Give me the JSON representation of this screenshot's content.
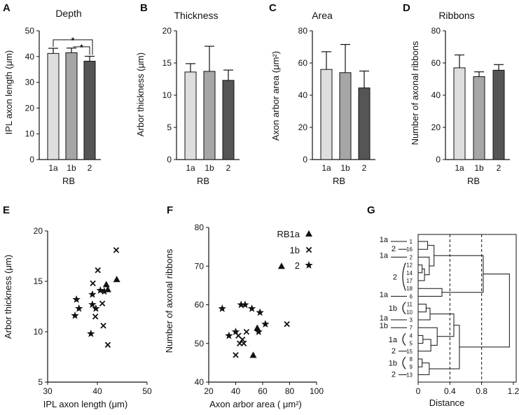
{
  "chart_data": [
    {
      "panel": "A",
      "type": "bar",
      "title": "Depth",
      "ylabel": "IPL axon length (μm)",
      "xlabel": "RB",
      "categories": [
        "1a",
        "1b",
        "2"
      ],
      "values": [
        41.2,
        41.5,
        38.2
      ],
      "errors": [
        2.0,
        1.8,
        1.9
      ],
      "ylim": [
        0,
        50
      ],
      "yticks": [
        0,
        10,
        20,
        30,
        40,
        50
      ],
      "colors": [
        "#dedede",
        "#a6a6a6",
        "#555555"
      ],
      "significance": [
        {
          "from": 0,
          "to": 2,
          "label": "*"
        },
        {
          "from": 1,
          "to": 2,
          "label": "*"
        }
      ]
    },
    {
      "panel": "B",
      "type": "bar",
      "title": "Thickness",
      "ylabel": "Arbor thickness (μm)",
      "xlabel": "RB",
      "categories": [
        "1a",
        "1b",
        "2"
      ],
      "values": [
        13.6,
        13.7,
        12.3
      ],
      "errors": [
        1.3,
        3.9,
        1.6
      ],
      "ylim": [
        0,
        20
      ],
      "yticks": [
        0,
        5,
        10,
        15,
        20
      ],
      "colors": [
        "#dedede",
        "#a6a6a6",
        "#555555"
      ],
      "significance": []
    },
    {
      "panel": "C",
      "type": "bar",
      "title": "Area",
      "ylabel": "Axon arbor area (μm²)",
      "xlabel": "RB",
      "categories": [
        "1a",
        "1b",
        "2"
      ],
      "values": [
        56,
        54,
        44.5
      ],
      "errors": [
        11,
        17.5,
        10.5
      ],
      "ylim": [
        0,
        80
      ],
      "yticks": [
        0,
        20,
        40,
        60,
        80
      ],
      "colors": [
        "#dedede",
        "#a6a6a6",
        "#555555"
      ],
      "significance": []
    },
    {
      "panel": "D",
      "type": "bar",
      "title": "Ribbons",
      "ylabel": "Number of axonal ribbons",
      "xlabel": "RB",
      "categories": [
        "1a",
        "1b",
        "2"
      ],
      "values": [
        57,
        51.5,
        55.5
      ],
      "errors": [
        8,
        3,
        3.5
      ],
      "ylim": [
        0,
        80
      ],
      "yticks": [
        0,
        20,
        40,
        60,
        80
      ],
      "colors": [
        "#dedede",
        "#a6a6a6",
        "#555555"
      ],
      "significance": []
    },
    {
      "panel": "E",
      "type": "scatter",
      "title": "",
      "xlabel": "IPL axon length (μm)",
      "ylabel": "Arbor thickness (μm)",
      "xlim": [
        30,
        50
      ],
      "ylim": [
        5,
        20
      ],
      "xticks": [
        30,
        40,
        50
      ],
      "yticks": [
        5,
        10,
        15,
        20
      ],
      "series": [
        {
          "name": "RB1a",
          "marker": "triangle",
          "points": [
            [
              41.8,
              14.7
            ],
            [
              43.9,
              15.2
            ],
            [
              42.1,
              14.2
            ]
          ]
        },
        {
          "name": "1b",
          "marker": "cross",
          "points": [
            [
              43.8,
              18.1
            ],
            [
              40.1,
              16.1
            ],
            [
              39.1,
              14.8
            ],
            [
              41.0,
              12.8
            ],
            [
              39.6,
              11.5
            ],
            [
              41.2,
              10.6
            ],
            [
              42.1,
              8.7
            ]
          ]
        },
        {
          "name": "2",
          "marker": "star",
          "points": [
            [
              35.8,
              13.2
            ],
            [
              36.3,
              12.3
            ],
            [
              35.5,
              11.6
            ],
            [
              39.0,
              13.7
            ],
            [
              39.0,
              12.7
            ],
            [
              39.7,
              12.3
            ],
            [
              40.6,
              14.1
            ],
            [
              41.4,
              14.0
            ],
            [
              38.7,
              9.8
            ]
          ]
        }
      ]
    },
    {
      "panel": "F",
      "type": "scatter",
      "title": "",
      "xlabel": "Axon arbor area ( μm²)",
      "ylabel": "Number of axonal ribbons",
      "xlim": [
        20,
        100
      ],
      "ylim": [
        40,
        80
      ],
      "xticks": [
        20,
        40,
        60,
        80,
        100
      ],
      "yticks": [
        40,
        50,
        60,
        70,
        80
      ],
      "series": [
        {
          "name": "RB1a",
          "marker": "triangle",
          "points": [
            [
              74,
              70
            ],
            [
              53,
              47
            ],
            [
              56,
              54
            ]
          ]
        },
        {
          "name": "1b",
          "marker": "cross",
          "points": [
            [
              78,
              55
            ],
            [
              40,
              47
            ],
            [
              43,
              50
            ],
            [
              45,
              51
            ],
            [
              42,
              52
            ],
            [
              48,
              53
            ],
            [
              46,
              50
            ]
          ]
        },
        {
          "name": "2",
          "marker": "star",
          "points": [
            [
              30,
              59
            ],
            [
              35,
              52
            ],
            [
              40,
              53
            ],
            [
              44,
              60
            ],
            [
              47,
              60
            ],
            [
              52,
              59
            ],
            [
              58,
              58
            ],
            [
              62,
              55
            ],
            [
              57,
              53
            ]
          ]
        }
      ],
      "legend_title": "RB",
      "legend_labels": [
        "RB1a",
        "1b",
        "2"
      ]
    },
    {
      "panel": "G",
      "type": "dendrogram",
      "title": "",
      "xlabel": "Distance",
      "xlim": [
        0,
        1.2
      ],
      "xticks": [
        "0",
        "0.4",
        "0.8",
        "1.2"
      ],
      "thresholds": [
        0.4,
        0.8
      ],
      "leaves": [
        "1",
        "16",
        "2",
        "12",
        "14",
        "17",
        "18",
        "6",
        "11",
        "10",
        "3",
        "7",
        "4",
        "5",
        "15",
        "8",
        "9",
        "13"
      ],
      "merges": [
        {
          "a": 0,
          "b": 1,
          "h": 0.12
        },
        {
          "a": 3,
          "b": 4,
          "h": 0.05
        },
        {
          "a": 19,
          "b": 5,
          "h": 0.08
        },
        {
          "a": 2,
          "b": 20,
          "h": 0.14
        },
        {
          "a": 18,
          "b": 21,
          "h": 0.2
        },
        {
          "a": 6,
          "b": 7,
          "h": 0.3
        },
        {
          "a": 22,
          "b": 23,
          "h": 0.82
        },
        {
          "a": 8,
          "b": 9,
          "h": 0.1
        },
        {
          "a": 25,
          "b": 10,
          "h": 0.15
        },
        {
          "a": 12,
          "b": 13,
          "h": 0.06
        },
        {
          "a": 27,
          "b": 14,
          "h": 0.16
        },
        {
          "a": 11,
          "b": 28,
          "h": 0.24
        },
        {
          "a": 26,
          "b": 29,
          "h": 0.45
        },
        {
          "a": 15,
          "b": 16,
          "h": 0.05
        },
        {
          "a": 31,
          "b": 17,
          "h": 0.14
        },
        {
          "a": 30,
          "b": 32,
          "h": 0.52
        },
        {
          "a": 24,
          "b": 33,
          "h": 1.15
        }
      ],
      "group_labels": [
        {
          "text": "1a",
          "leaf": 0,
          "style": "line"
        },
        {
          "text": "2",
          "leaf": 1,
          "style": "line"
        },
        {
          "text": "1a",
          "leaf": 2,
          "style": "line"
        },
        {
          "text": "2",
          "from": 3,
          "to": 6,
          "style": "paren"
        },
        {
          "text": "1a",
          "leaf": 7,
          "style": "line"
        },
        {
          "text": "1b",
          "from": 8,
          "to": 9,
          "style": "paren"
        },
        {
          "text": "1a",
          "leaf": 10,
          "style": "line"
        },
        {
          "text": "1b",
          "leaf": 11,
          "style": "line"
        },
        {
          "text": "1a",
          "from": 12,
          "to": 13,
          "style": "paren"
        },
        {
          "text": "2",
          "leaf": 14,
          "style": "line"
        },
        {
          "text": "1b",
          "from": 15,
          "to": 16,
          "style": "paren"
        },
        {
          "text": "2",
          "leaf": 17,
          "style": "line"
        }
      ]
    }
  ]
}
